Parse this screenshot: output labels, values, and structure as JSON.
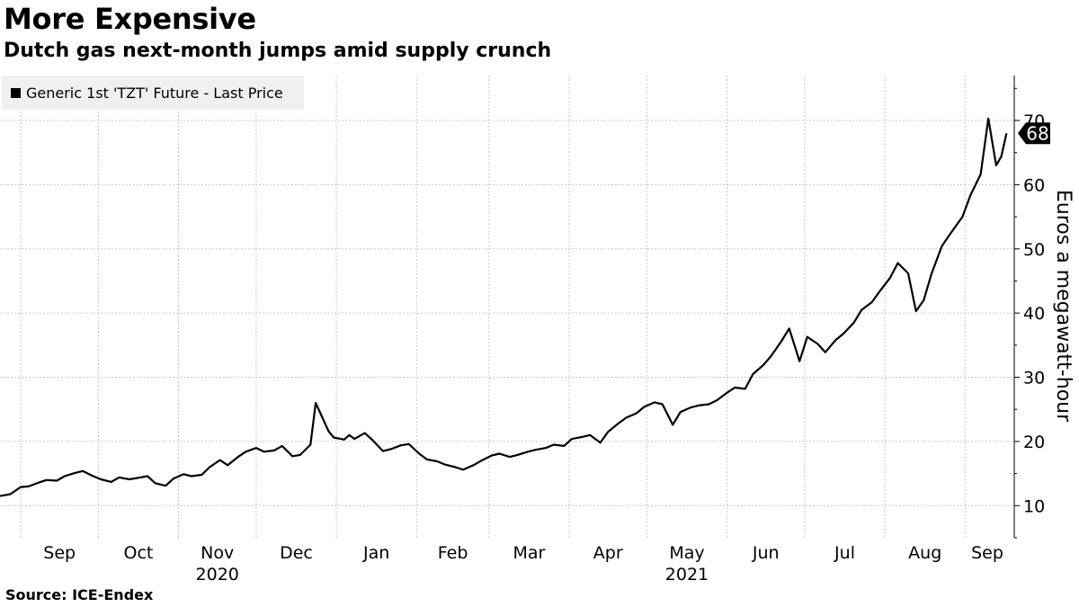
{
  "header": {
    "title": "More Expensive",
    "subtitle": "Dutch gas next-month jumps amid supply crunch"
  },
  "footer": {
    "source": "Source: ICE-Endex"
  },
  "colors": {
    "line": "#000000",
    "grid": "#c8c8c8",
    "legend_bg": "#f0f0f0",
    "badge": "#000000"
  },
  "chart_data": {
    "type": "line",
    "title": "More Expensive",
    "subtitle": "Dutch gas next-month jumps amid supply crunch",
    "ylabel": "Euros a megawatt-hour",
    "xlabel": "",
    "x_range": [
      "2020-08-24",
      "2021-09-20"
    ],
    "ylim": [
      5,
      77
    ],
    "y_ticks": [
      10,
      20,
      30,
      40,
      50,
      60,
      70
    ],
    "y_axis_side": "right",
    "grid": true,
    "legend_position": "top-left",
    "x_month_labels": [
      {
        "label": "Sep",
        "date": "2020-09-01"
      },
      {
        "label": "Oct",
        "date": "2020-10-01"
      },
      {
        "label": "Nov",
        "date": "2020-11-01"
      },
      {
        "label": "Dec",
        "date": "2020-12-01"
      },
      {
        "label": "Jan",
        "date": "2021-01-01"
      },
      {
        "label": "Feb",
        "date": "2021-02-01"
      },
      {
        "label": "Mar",
        "date": "2021-03-01"
      },
      {
        "label": "Apr",
        "date": "2021-04-01"
      },
      {
        "label": "May",
        "date": "2021-05-01"
      },
      {
        "label": "Jun",
        "date": "2021-06-01"
      },
      {
        "label": "Jul",
        "date": "2021-07-01"
      },
      {
        "label": "Aug",
        "date": "2021-08-01"
      },
      {
        "label": "Sep",
        "date": "2021-09-01"
      }
    ],
    "x_year_labels": [
      {
        "label": "2020",
        "date": "2020-11-01"
      },
      {
        "label": "2021",
        "date": "2021-05-01"
      }
    ],
    "last_value_label": "68",
    "series": [
      {
        "name": "Generic 1st 'TZT' Future - Last Price",
        "x": [
          "2020-08-24",
          "2020-08-28",
          "2020-09-01",
          "2020-09-04",
          "2020-09-08",
          "2020-09-11",
          "2020-09-15",
          "2020-09-18",
          "2020-09-22",
          "2020-09-25",
          "2020-09-29",
          "2020-10-02",
          "2020-10-06",
          "2020-10-09",
          "2020-10-13",
          "2020-10-16",
          "2020-10-20",
          "2020-10-23",
          "2020-10-27",
          "2020-10-30",
          "2020-11-03",
          "2020-11-06",
          "2020-11-10",
          "2020-11-13",
          "2020-11-17",
          "2020-11-20",
          "2020-11-24",
          "2020-11-27",
          "2020-12-01",
          "2020-12-04",
          "2020-12-08",
          "2020-12-11",
          "2020-12-15",
          "2020-12-18",
          "2020-12-22",
          "2020-12-24",
          "2020-12-29",
          "2020-12-31",
          "2021-01-04",
          "2021-01-06",
          "2021-01-08",
          "2021-01-12",
          "2021-01-15",
          "2021-01-19",
          "2021-01-22",
          "2021-01-26",
          "2021-01-29",
          "2021-02-02",
          "2021-02-05",
          "2021-02-09",
          "2021-02-12",
          "2021-02-16",
          "2021-02-19",
          "2021-02-23",
          "2021-02-26",
          "2021-03-02",
          "2021-03-05",
          "2021-03-09",
          "2021-03-12",
          "2021-03-16",
          "2021-03-19",
          "2021-03-23",
          "2021-03-26",
          "2021-03-30",
          "2021-04-02",
          "2021-04-06",
          "2021-04-09",
          "2021-04-13",
          "2021-04-16",
          "2021-04-20",
          "2021-04-23",
          "2021-04-27",
          "2021-04-30",
          "2021-05-04",
          "2021-05-07",
          "2021-05-11",
          "2021-05-14",
          "2021-05-18",
          "2021-05-21",
          "2021-05-25",
          "2021-05-28",
          "2021-06-01",
          "2021-06-04",
          "2021-06-08",
          "2021-06-11",
          "2021-06-15",
          "2021-06-18",
          "2021-06-22",
          "2021-06-25",
          "2021-06-29",
          "2021-07-02",
          "2021-07-06",
          "2021-07-09",
          "2021-07-13",
          "2021-07-16",
          "2021-07-20",
          "2021-07-23",
          "2021-07-27",
          "2021-07-30",
          "2021-08-03",
          "2021-08-06",
          "2021-08-10",
          "2021-08-13",
          "2021-08-16",
          "2021-08-19",
          "2021-08-23",
          "2021-08-26",
          "2021-08-31",
          "2021-09-03",
          "2021-09-07",
          "2021-09-10",
          "2021-09-13",
          "2021-09-15",
          "2021-09-17"
        ],
        "y": [
          11.5,
          11.8,
          12.9,
          13.0,
          13.6,
          14.0,
          13.9,
          14.6,
          15.1,
          15.4,
          14.6,
          14.1,
          13.7,
          14.4,
          14.1,
          14.3,
          14.6,
          13.5,
          13.1,
          14.2,
          14.9,
          14.6,
          14.8,
          16.0,
          17.1,
          16.3,
          17.6,
          18.4,
          19.0,
          18.4,
          18.6,
          19.3,
          17.7,
          17.9,
          19.5,
          26.0,
          21.6,
          20.6,
          20.3,
          21.0,
          20.4,
          21.3,
          20.2,
          18.5,
          18.8,
          19.4,
          19.6,
          18.1,
          17.2,
          16.9,
          16.4,
          16.0,
          15.6,
          16.3,
          17.0,
          17.8,
          18.1,
          17.6,
          17.9,
          18.4,
          18.7,
          19.0,
          19.5,
          19.3,
          20.4,
          20.7,
          21.0,
          19.8,
          21.5,
          22.8,
          23.7,
          24.4,
          25.4,
          26.1,
          25.8,
          22.6,
          24.6,
          25.3,
          25.6,
          25.8,
          26.4,
          27.6,
          28.4,
          28.2,
          30.5,
          31.9,
          33.3,
          35.6,
          37.6,
          32.5,
          36.3,
          35.2,
          33.9,
          35.8,
          36.8,
          38.5,
          40.5,
          41.7,
          43.4,
          45.5,
          47.8,
          46.2,
          40.3,
          42.0,
          46.1,
          50.4,
          52.2,
          55.0,
          58.3,
          61.6,
          70.3,
          63.0,
          64.4,
          68.0
        ]
      }
    ]
  }
}
